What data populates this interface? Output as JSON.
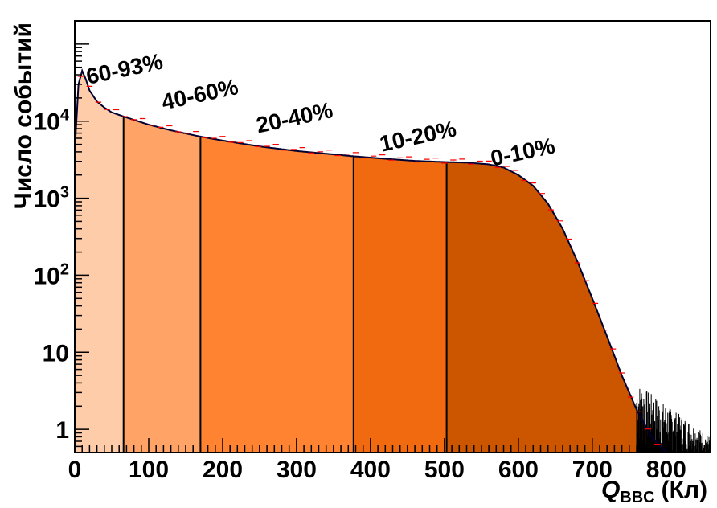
{
  "chart_data": {
    "type": "area",
    "xlabel_main": "Q",
    "xlabel_sub": "BBC",
    "xlabel_unit": "(Кл)",
    "ylabel": "Число событий",
    "xlim": [
      0,
      860
    ],
    "ylim": [
      0.5,
      200000
    ],
    "y_scale": "log",
    "grid": false,
    "x_ticks": [
      {
        "value": 0,
        "label": "0"
      },
      {
        "value": 100,
        "label": "100"
      },
      {
        "value": 200,
        "label": "200"
      },
      {
        "value": 300,
        "label": "300"
      },
      {
        "value": 400,
        "label": "400"
      },
      {
        "value": 500,
        "label": "500"
      },
      {
        "value": 600,
        "label": "600"
      },
      {
        "value": 700,
        "label": "700"
      },
      {
        "value": 800,
        "label": "800"
      }
    ],
    "y_ticks": [
      {
        "value": 1,
        "base": "1",
        "exp": ""
      },
      {
        "value": 10,
        "base": "10",
        "exp": ""
      },
      {
        "value": 100,
        "base": "10",
        "exp": "2"
      },
      {
        "value": 1000,
        "base": "10",
        "exp": "3"
      },
      {
        "value": 10000,
        "base": "10",
        "exp": "4"
      }
    ],
    "distribution": [
      {
        "x": 0,
        "y": 4000
      },
      {
        "x": 5,
        "y": 30000
      },
      {
        "x": 10,
        "y": 45000
      },
      {
        "x": 15,
        "y": 35000
      },
      {
        "x": 20,
        "y": 25000
      },
      {
        "x": 30,
        "y": 18000
      },
      {
        "x": 40,
        "y": 15000
      },
      {
        "x": 50,
        "y": 13000
      },
      {
        "x": 66,
        "y": 11500
      },
      {
        "x": 100,
        "y": 9000
      },
      {
        "x": 130,
        "y": 7600
      },
      {
        "x": 170,
        "y": 6300
      },
      {
        "x": 200,
        "y": 5600
      },
      {
        "x": 250,
        "y": 4700
      },
      {
        "x": 300,
        "y": 4100
      },
      {
        "x": 350,
        "y": 3700
      },
      {
        "x": 377,
        "y": 3500
      },
      {
        "x": 420,
        "y": 3250
      },
      {
        "x": 460,
        "y": 3050
      },
      {
        "x": 500,
        "y": 2950
      },
      {
        "x": 530,
        "y": 2900
      },
      {
        "x": 560,
        "y": 2750
      },
      {
        "x": 580,
        "y": 2500
      },
      {
        "x": 600,
        "y": 2000
      },
      {
        "x": 620,
        "y": 1450
      },
      {
        "x": 640,
        "y": 850
      },
      {
        "x": 660,
        "y": 400
      },
      {
        "x": 680,
        "y": 150
      },
      {
        "x": 700,
        "y": 50
      },
      {
        "x": 720,
        "y": 16
      },
      {
        "x": 740,
        "y": 5
      },
      {
        "x": 760,
        "y": 1.8
      },
      {
        "x": 780,
        "y": 0.8
      },
      {
        "x": 800,
        "y": 0.5
      }
    ],
    "tail_noise": {
      "x_start": 760,
      "x_end": 860,
      "y_floor": 0.5,
      "y_high_start": 4,
      "y_high_end": 0.8
    },
    "classes": [
      {
        "label": "60-93%",
        "x_min": 0,
        "x_max": 66,
        "color": "#FFCCAA",
        "label_x": 18,
        "label_y": 30000
      },
      {
        "label": "40-60%",
        "x_min": 66,
        "x_max": 170,
        "color": "#FFA366",
        "label_x": 120,
        "label_y": 14000
      },
      {
        "label": "20-40%",
        "x_min": 170,
        "x_max": 377,
        "color": "#FF8330",
        "label_x": 248,
        "label_y": 7000
      },
      {
        "label": "10-20%",
        "x_min": 377,
        "x_max": 503,
        "color": "#F26A10",
        "label_x": 415,
        "label_y": 4000
      },
      {
        "label": "0-10%",
        "x_min": 503,
        "x_max": 860,
        "color": "#CC5500",
        "label_x": 565,
        "label_y": 2600
      }
    ],
    "boundaries": [
      66,
      170,
      377,
      503
    ]
  }
}
